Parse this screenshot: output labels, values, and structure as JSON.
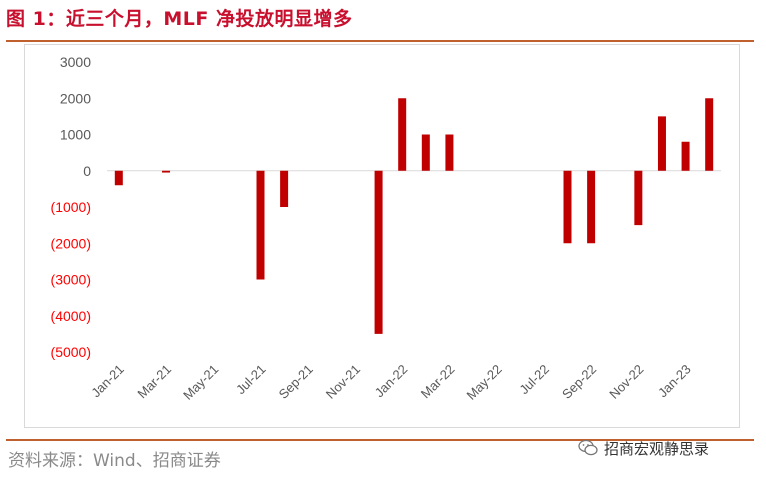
{
  "title": "图 1：近三个月，MLF 净投放明显增多",
  "source": "资料来源：Wind、招商证券",
  "watermark": {
    "text": "招商宏观静思录",
    "icon": "wechat-icon"
  },
  "colors": {
    "bar": "#c00000",
    "title": "#c8102e",
    "rule": "#c0602e",
    "axis_text": "#595959",
    "negative_text": "#ff0000"
  },
  "chart_data": {
    "type": "bar",
    "title": "",
    "xlabel": "",
    "ylabel": "",
    "ylim": [
      -5000,
      3000
    ],
    "y_ticks": [
      3000,
      2000,
      1000,
      0,
      -1000,
      -2000,
      -3000,
      -4000,
      -5000
    ],
    "y_tick_labels": [
      "3000",
      "2000",
      "1000",
      "0",
      "(1000)",
      "(2000)",
      "(3000)",
      "(4000)",
      "(5000)"
    ],
    "grid": false,
    "legend": "none",
    "categories": [
      "Jan-21",
      "Feb-21",
      "Mar-21",
      "Apr-21",
      "May-21",
      "Jun-21",
      "Jul-21",
      "Aug-21",
      "Sep-21",
      "Oct-21",
      "Nov-21",
      "Dec-21",
      "Jan-22",
      "Feb-22",
      "Mar-22",
      "Apr-22",
      "May-22",
      "Jun-22",
      "Jul-22",
      "Aug-22",
      "Sep-22",
      "Oct-22",
      "Nov-22",
      "Dec-22",
      "Jan-23",
      "Feb-23"
    ],
    "x_tick_labels": [
      "Jan-21",
      "",
      "Mar-21",
      "",
      "May-21",
      "",
      "Jul-21",
      "",
      "Sep-21",
      "",
      "Nov-21",
      "",
      "Jan-22",
      "",
      "Mar-22",
      "",
      "May-22",
      "",
      "Jul-22",
      "",
      "Sep-22",
      "",
      "Nov-22",
      "",
      "Jan-23",
      ""
    ],
    "values": [
      -400,
      0,
      -50,
      0,
      0,
      0,
      -3000,
      -1000,
      0,
      0,
      0,
      -4500,
      2000,
      1000,
      1000,
      0,
      0,
      0,
      0,
      -2000,
      -2000,
      0,
      -1500,
      1500,
      800,
      2000
    ]
  }
}
